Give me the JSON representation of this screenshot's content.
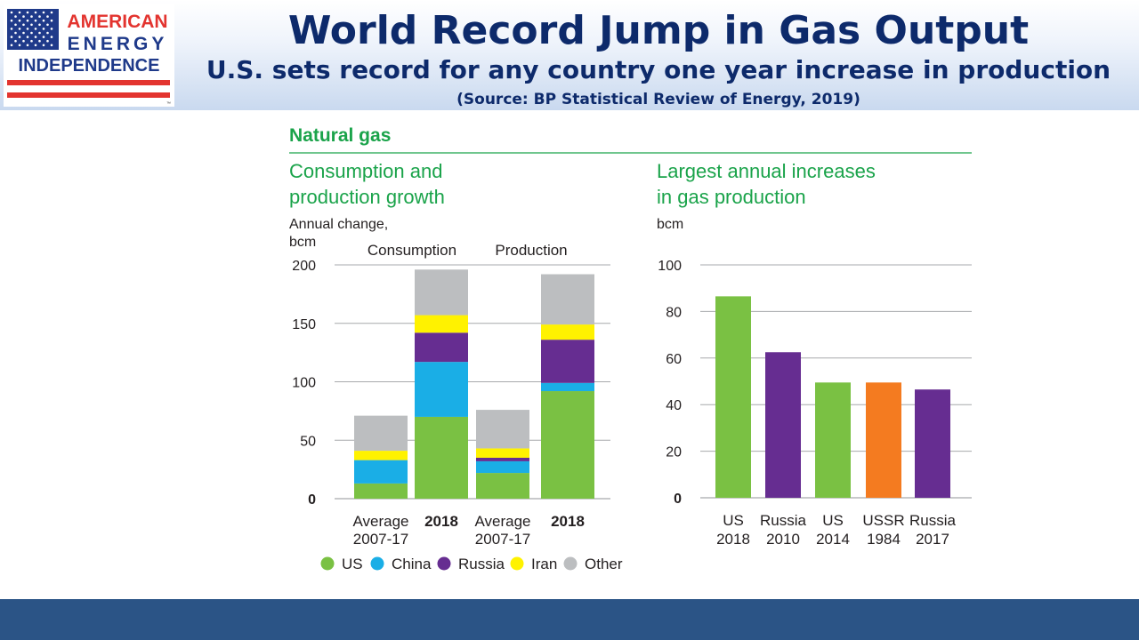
{
  "header": {
    "logo": {
      "line1": "AMERICAN",
      "line2": "ENERGY",
      "line3": "INDEPENDENCE",
      "tm": "™"
    },
    "title": "World Record Jump in Gas Output",
    "subtitle": "U.S. sets record for any country one year increase in production",
    "source": "(Source: BP Statistical Review of Energy, 2019)"
  },
  "section_title": "Natural gas",
  "colors": {
    "green_text": "#1aa34a",
    "US": "#7ac143",
    "China": "#1aaee6",
    "Russia": "#662d91",
    "Iran": "#fff200",
    "Other": "#bcbec0",
    "USSR": "#f47b20",
    "navy": "#0d2a6b",
    "flag_red": "#e3342f"
  },
  "chart_data": [
    {
      "type": "bar",
      "stacked": true,
      "title": "Consumption and production growth",
      "title_lines": [
        "Consumption and",
        "production growth"
      ],
      "ylabel_lines": [
        "Annual change,",
        "bcm"
      ],
      "unit": "bcm",
      "ylim": [
        0,
        200
      ],
      "yticks": [
        "0",
        "50",
        "100",
        "150",
        "200"
      ],
      "group_labels": [
        "Consumption",
        "Production"
      ],
      "categories": [
        {
          "lines": [
            "Average",
            "2007-17"
          ],
          "bold": false
        },
        {
          "lines": [
            "2018"
          ],
          "bold": true
        },
        {
          "lines": [
            "Average",
            "2007-17"
          ],
          "bold": false
        },
        {
          "lines": [
            "2018"
          ],
          "bold": true
        }
      ],
      "series": [
        {
          "name": "US",
          "values": [
            13,
            70,
            22,
            92
          ]
        },
        {
          "name": "China",
          "values": [
            20,
            47,
            10,
            7
          ]
        },
        {
          "name": "Russia",
          "values": [
            0,
            25,
            3,
            37
          ]
        },
        {
          "name": "Iran",
          "values": [
            8,
            15,
            8,
            13
          ]
        },
        {
          "name": "Other",
          "values": [
            30,
            39,
            33,
            43
          ]
        }
      ],
      "legend": [
        "US",
        "China",
        "Russia",
        "Iran",
        "Other"
      ],
      "legend_position": "bottom"
    },
    {
      "type": "bar",
      "title": "Largest annual increases in gas production",
      "title_lines": [
        "Largest annual increases",
        "in gas production"
      ],
      "ylabel_lines": [
        "bcm"
      ],
      "unit": "bcm",
      "ylim": [
        0,
        100
      ],
      "yticks": [
        "0",
        "20",
        "40",
        "60",
        "80",
        "100"
      ],
      "categories": [
        {
          "lines": [
            "US",
            "2018"
          ],
          "color_key": "US"
        },
        {
          "lines": [
            "Russia",
            "2010"
          ],
          "color_key": "Russia"
        },
        {
          "lines": [
            "US",
            "2014"
          ],
          "color_key": "US"
        },
        {
          "lines": [
            "USSR",
            "1984"
          ],
          "color_key": "USSR"
        },
        {
          "lines": [
            "Russia",
            "2017"
          ],
          "color_key": "Russia"
        }
      ],
      "values": [
        86.5,
        62.5,
        49.5,
        49.5,
        46.5
      ]
    }
  ]
}
